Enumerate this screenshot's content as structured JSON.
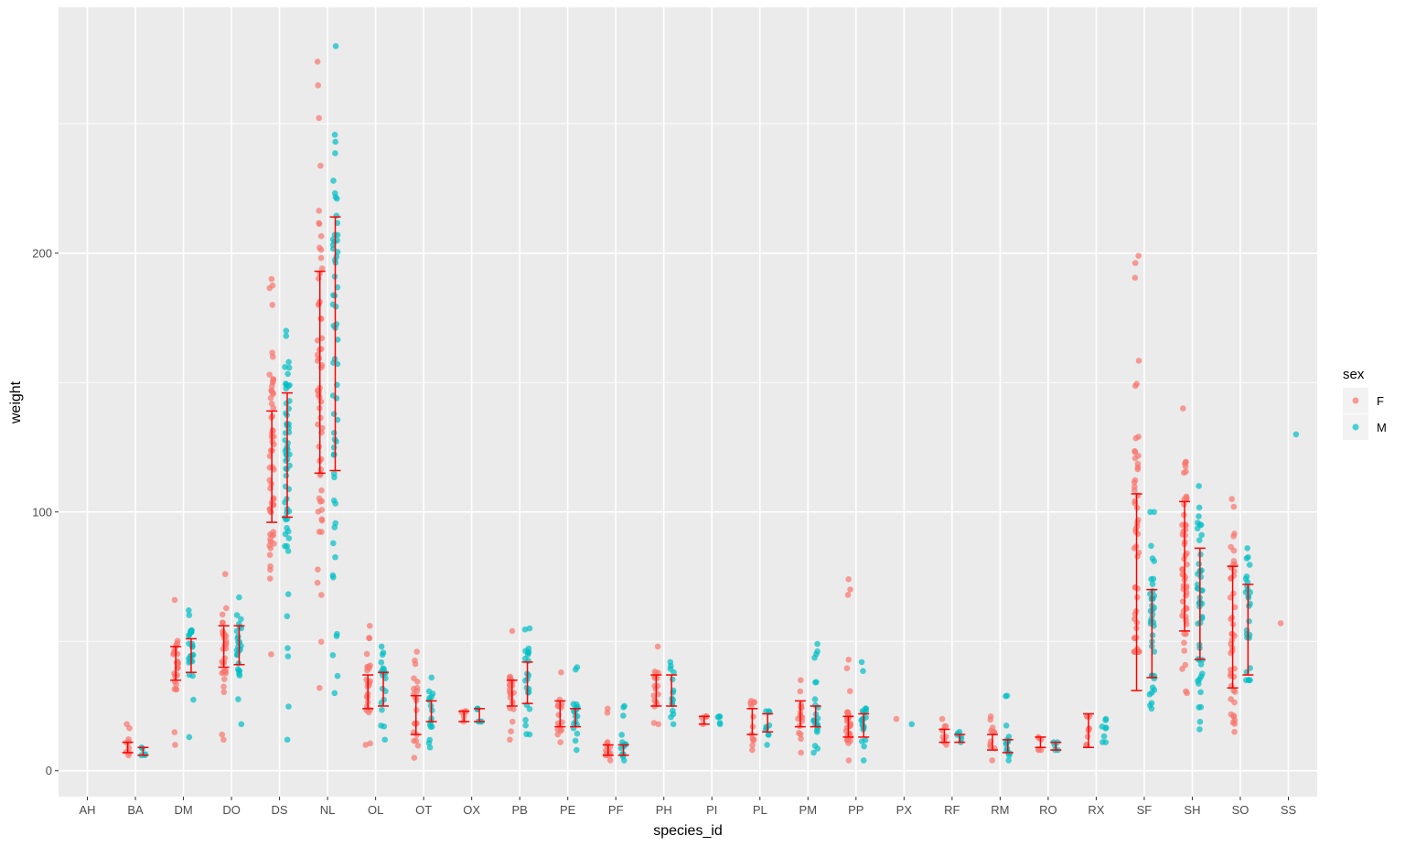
{
  "chart_data": {
    "type": "scatter",
    "title": "",
    "xlabel": "species_id",
    "ylabel": "weight",
    "ylim": [
      -10,
      295
    ],
    "yticks": [
      0,
      100,
      200
    ],
    "grid": true,
    "legend": {
      "title": "sex",
      "placement": "right",
      "entries": [
        {
          "label": "F",
          "color": "#F8766D"
        },
        {
          "label": "M",
          "color": "#00BFC4"
        }
      ]
    },
    "colors": {
      "F": "#F8766D",
      "M": "#00BFC4",
      "errorbar": "#FF0000",
      "panel": "#EBEBEB",
      "grid": "#FFFFFF"
    },
    "categories": [
      "AH",
      "BA",
      "DM",
      "DO",
      "DS",
      "NL",
      "OL",
      "OT",
      "OX",
      "PB",
      "PE",
      "PF",
      "PH",
      "PI",
      "PL",
      "PM",
      "PP",
      "PX",
      "RF",
      "RM",
      "RO",
      "RX",
      "SF",
      "SH",
      "SO",
      "SS"
    ],
    "series": [
      {
        "name": "F",
        "points": [
          {
            "x": "BA",
            "min": 6,
            "max": 18,
            "lo": 7,
            "hi": 11
          },
          {
            "x": "DM",
            "min": 10,
            "max": 66,
            "lo": 35,
            "hi": 48
          },
          {
            "x": "DO",
            "min": 12,
            "max": 76,
            "lo": 40,
            "hi": 56
          },
          {
            "x": "DS",
            "min": 45,
            "max": 190,
            "lo": 96,
            "hi": 139
          },
          {
            "x": "NL",
            "min": 32,
            "max": 274,
            "lo": 115,
            "hi": 193
          },
          {
            "x": "OL",
            "min": 10,
            "max": 56,
            "lo": 24,
            "hi": 37
          },
          {
            "x": "OT",
            "min": 5,
            "max": 46,
            "lo": 14,
            "hi": 29
          },
          {
            "x": "OX",
            "min": 19,
            "max": 23,
            "lo": 19,
            "hi": 23
          },
          {
            "x": "PB",
            "min": 12,
            "max": 54,
            "lo": 25,
            "hi": 35
          },
          {
            "x": "PE",
            "min": 11,
            "max": 38,
            "lo": 17,
            "hi": 27
          },
          {
            "x": "PF",
            "min": 4,
            "max": 24,
            "lo": 6,
            "hi": 10
          },
          {
            "x": "PH",
            "min": 18,
            "max": 48,
            "lo": 25,
            "hi": 37
          },
          {
            "x": "PI",
            "min": 18,
            "max": 21,
            "lo": 18,
            "hi": 21
          },
          {
            "x": "PL",
            "min": 8,
            "max": 27,
            "lo": 14,
            "hi": 24
          },
          {
            "x": "PM",
            "min": 7,
            "max": 35,
            "lo": 17,
            "hi": 27
          },
          {
            "x": "PP",
            "min": 4,
            "max": 74,
            "lo": 13,
            "hi": 21
          },
          {
            "x": "PX",
            "min": 20,
            "max": 20,
            "lo": null,
            "hi": null
          },
          {
            "x": "RF",
            "min": 10,
            "max": 20,
            "lo": 11,
            "hi": 16
          },
          {
            "x": "RM",
            "min": 4,
            "max": 21,
            "lo": 8,
            "hi": 14
          },
          {
            "x": "RO",
            "min": 8,
            "max": 13,
            "lo": 9,
            "hi": 13
          },
          {
            "x": "RX",
            "min": 10,
            "max": 21,
            "lo": 9,
            "hi": 22
          },
          {
            "x": "SF",
            "min": 46,
            "max": 199,
            "lo": 31,
            "hi": 107
          },
          {
            "x": "SH",
            "min": 30,
            "max": 140,
            "lo": 54,
            "hi": 104
          },
          {
            "x": "SO",
            "min": 15,
            "max": 105,
            "lo": 32,
            "hi": 79
          },
          {
            "x": "SS",
            "min": 57,
            "max": 57,
            "lo": null,
            "hi": null
          }
        ]
      },
      {
        "name": "M",
        "points": [
          {
            "x": "BA",
            "min": 6,
            "max": 9,
            "lo": 6,
            "hi": 9
          },
          {
            "x": "DM",
            "min": 13,
            "max": 62,
            "lo": 38,
            "hi": 51
          },
          {
            "x": "DO",
            "min": 18,
            "max": 67,
            "lo": 41,
            "hi": 56
          },
          {
            "x": "DS",
            "min": 12,
            "max": 170,
            "lo": 98,
            "hi": 146
          },
          {
            "x": "NL",
            "min": 30,
            "max": 280,
            "lo": 116,
            "hi": 214
          },
          {
            "x": "OL",
            "min": 12,
            "max": 48,
            "lo": 25,
            "hi": 38
          },
          {
            "x": "OT",
            "min": 9,
            "max": 36,
            "lo": 19,
            "hi": 27
          },
          {
            "x": "OX",
            "min": 19,
            "max": 24,
            "lo": 19,
            "hi": 24
          },
          {
            "x": "PB",
            "min": 14,
            "max": 55,
            "lo": 26,
            "hi": 42
          },
          {
            "x": "PE",
            "min": 8,
            "max": 40,
            "lo": 17,
            "hi": 24
          },
          {
            "x": "PF",
            "min": 4,
            "max": 25,
            "lo": 6,
            "hi": 10
          },
          {
            "x": "PH",
            "min": 18,
            "max": 42,
            "lo": 25,
            "hi": 37
          },
          {
            "x": "PI",
            "min": 18,
            "max": 21,
            "lo": null,
            "hi": null
          },
          {
            "x": "PL",
            "min": 10,
            "max": 23,
            "lo": 15,
            "hi": 22
          },
          {
            "x": "PM",
            "min": 7,
            "max": 49,
            "lo": 17,
            "hi": 25
          },
          {
            "x": "PP",
            "min": 4,
            "max": 42,
            "lo": 13,
            "hi": 22
          },
          {
            "x": "PX",
            "min": 18,
            "max": 18,
            "lo": null,
            "hi": null
          },
          {
            "x": "RF",
            "min": 11,
            "max": 15,
            "lo": 11,
            "hi": 14
          },
          {
            "x": "RM",
            "min": 4,
            "max": 29,
            "lo": 7,
            "hi": 12
          },
          {
            "x": "RO",
            "min": 8,
            "max": 11,
            "lo": 8,
            "hi": 11
          },
          {
            "x": "RX",
            "min": 11,
            "max": 20,
            "lo": null,
            "hi": null
          },
          {
            "x": "SF",
            "min": 24,
            "max": 100,
            "lo": 36,
            "hi": 70
          },
          {
            "x": "SH",
            "min": 16,
            "max": 110,
            "lo": 43,
            "hi": 86
          },
          {
            "x": "SO",
            "min": 35,
            "max": 86,
            "lo": 37,
            "hi": 72
          },
          {
            "x": "SS",
            "min": 130,
            "max": 130,
            "lo": null,
            "hi": null
          }
        ]
      }
    ]
  }
}
